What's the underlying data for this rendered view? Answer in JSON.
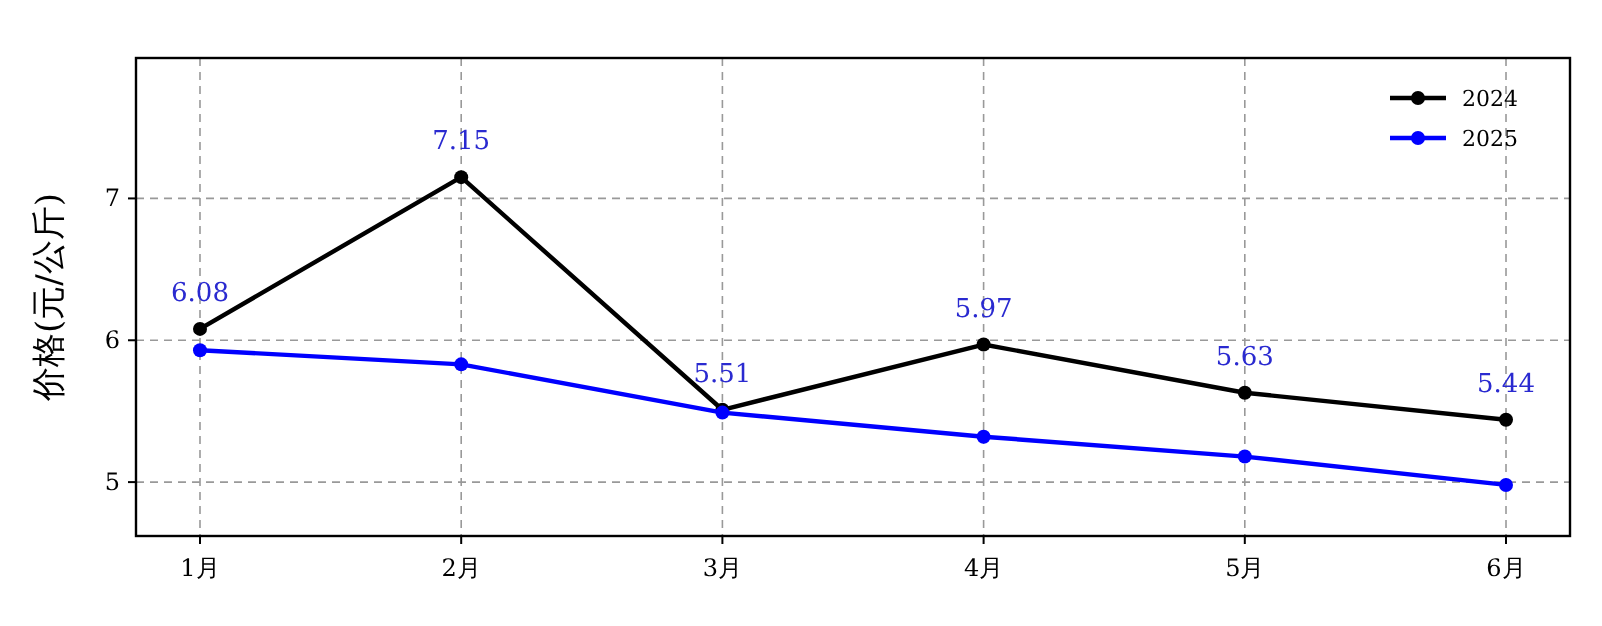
{
  "chart_data": {
    "type": "line",
    "ylabel": "价格(元/公斤)",
    "categories": [
      "1月",
      "2月",
      "3月",
      "4月",
      "5月",
      "6月"
    ],
    "series": [
      {
        "name": "2024",
        "color": "#000000",
        "values": [
          6.08,
          7.15,
          5.51,
          5.97,
          5.63,
          5.44
        ],
        "value_labels": [
          "6.08",
          "7.15",
          "5.51",
          "5.97",
          "5.63",
          "5.44"
        ]
      },
      {
        "name": "2025",
        "color": "#0000ff",
        "values": [
          5.93,
          5.83,
          5.49,
          5.32,
          5.18,
          4.98
        ]
      }
    ],
    "ylim": [
      4.62,
      7.99
    ],
    "yticks": [
      5,
      6,
      7
    ],
    "grid": true,
    "legend": "top right",
    "marker": "circle",
    "line_style": "solid"
  }
}
